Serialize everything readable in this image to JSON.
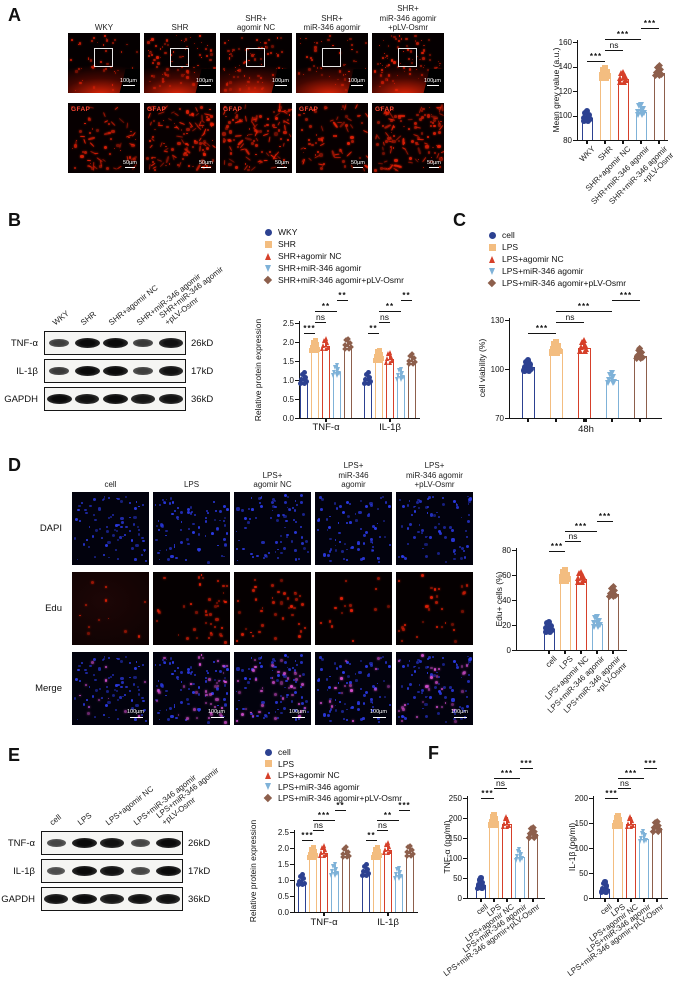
{
  "colors": {
    "series": [
      "#2c4191",
      "#f3bd80",
      "#d6402a",
      "#7fb2d8",
      "#8d5f4c"
    ],
    "fluor_red": "#e32007",
    "fluor_blue": "#2b3ae6",
    "fluor_magenta": "#d84fd0"
  },
  "markers": [
    "circle",
    "square",
    "triangle-up",
    "triangle-down",
    "diamond"
  ],
  "panelA": {
    "label": "A",
    "col_headers": [
      "WKY",
      "SHR",
      "SHR+\nagomir NC",
      "SHR+\nmiR-346 agomir",
      "SHR+\nmiR-346 agomir\n+pLV-Osmr"
    ],
    "gfap": "GFAP",
    "scale_top": "100µm",
    "scale_bottom": "50µm"
  },
  "panelB": {
    "label": "B",
    "blot": {
      "lanes": [
        "WKY",
        "SHR",
        "SHR+agomir NC",
        "SHR+miR-346 agomir",
        "SHR+miR-346 agomir\n+pLV-Osmr"
      ],
      "rows": [
        {
          "protein": "TNF-α",
          "kd": "26kD",
          "intensities": [
            0.55,
            1,
            1,
            0.6,
            0.95
          ]
        },
        {
          "protein": "IL-1β",
          "kd": "17kD",
          "intensities": [
            0.6,
            1,
            1,
            0.55,
            0.95
          ]
        },
        {
          "protein": "GAPDH",
          "kd": "36kD",
          "intensities": [
            1,
            0.95,
            1,
            0.9,
            0.95
          ]
        }
      ]
    }
  },
  "panelC": {
    "label": "C"
  },
  "panelD": {
    "label": "D",
    "col_headers": [
      "cell",
      "LPS",
      "LPS+\nagomir NC",
      "LPS+\nmiR-346\nagomir",
      "LPS+\nmiR-346 agomir\n+pLV-Osmr"
    ],
    "row_headers": [
      "DAPI",
      "Edu",
      "Merge"
    ],
    "scale": "100µm"
  },
  "panelE": {
    "label": "E",
    "blot": {
      "lanes": [
        "cell",
        "LPS",
        "LPS+agomir NC",
        "LPS+miR-346 agomir",
        "LPS+miR-346 agomir\n+pLV-Osmr"
      ],
      "rows": [
        {
          "protein": "TNF-α",
          "kd": "26kD",
          "intensities": [
            0.5,
            1,
            0.95,
            0.5,
            1
          ]
        },
        {
          "protein": "IL-1β",
          "kd": "17kD",
          "intensities": [
            0.45,
            1,
            0.95,
            0.5,
            1
          ]
        },
        {
          "protein": "GAPDH",
          "kd": "36kD",
          "intensities": [
            0.95,
            1,
            0.9,
            0.95,
            0.95
          ]
        }
      ]
    }
  },
  "panelF": {
    "label": "F"
  },
  "chart_data": [
    {
      "id": "A",
      "type": "bar",
      "ylabel": "Mean grey value (a.u.)",
      "ylim": [
        80,
        160
      ],
      "yticks": [
        "80",
        "100",
        "120",
        "140",
        "160"
      ],
      "categories": [
        "WKY",
        "SHR",
        "SHR+agomir NC",
        "SHR+miR-346 agomir",
        "SHR+miR-346 agomir\n+pLV-Osmr"
      ],
      "values": [
        98,
        133,
        130,
        103,
        135
      ],
      "sig": [
        {
          "a": 3,
          "b": 4,
          "label": "***",
          "row": 0
        },
        {
          "a": 1,
          "b": 3,
          "label": "***",
          "row": 1
        },
        {
          "a": 1,
          "b": 2,
          "label": "ns",
          "row": 2
        },
        {
          "a": 0,
          "b": 1,
          "label": "***",
          "row": 3
        }
      ]
    },
    {
      "id": "B",
      "type": "bar",
      "grouped": true,
      "ylabel": "Relative protein expression",
      "ylim": [
        0,
        2.5
      ],
      "yticks": [
        "0.0",
        "0.5",
        "1.0",
        "1.5",
        "2.0",
        "2.5"
      ],
      "categories": [
        "TNF-α",
        "IL-1β"
      ],
      "series": [
        {
          "name": "WKY",
          "values": [
            1.0,
            1.0
          ]
        },
        {
          "name": "SHR",
          "values": [
            1.85,
            1.6
          ]
        },
        {
          "name": "SHR+agomir NC",
          "values": [
            1.9,
            1.55
          ]
        },
        {
          "name": "SHR+miR-346 agomir",
          "values": [
            1.2,
            1.1
          ]
        },
        {
          "name": "SHR+miR-346 agomir+pLV-Osmr",
          "values": [
            1.9,
            1.5
          ]
        }
      ],
      "sig": [
        {
          "g": 0,
          "a": 3,
          "b": 4,
          "label": "**",
          "row": 0
        },
        {
          "g": 0,
          "a": 1,
          "b": 3,
          "label": "**",
          "row": 1
        },
        {
          "g": 0,
          "a": 1,
          "b": 2,
          "label": "ns",
          "row": 2
        },
        {
          "g": 0,
          "a": 0,
          "b": 1,
          "label": "***",
          "row": 3
        },
        {
          "g": 1,
          "a": 3,
          "b": 4,
          "label": "**",
          "row": 0
        },
        {
          "g": 1,
          "a": 1,
          "b": 3,
          "label": "**",
          "row": 1
        },
        {
          "g": 1,
          "a": 1,
          "b": 2,
          "label": "ns",
          "row": 2
        },
        {
          "g": 1,
          "a": 0,
          "b": 1,
          "label": "**",
          "row": 3
        }
      ]
    },
    {
      "id": "C",
      "type": "bar",
      "ylabel": "cell viability (%)",
      "xlabel": "48h",
      "ylim": [
        70,
        130
      ],
      "yticks": [
        "70",
        "100",
        "130"
      ],
      "categories": [
        "cell",
        "LPS",
        "LPS+agomir NC",
        "LPS+miR-346 agomir",
        "LPS+miR-346 agomir+pLV-Osmr"
      ],
      "values": [
        101,
        112,
        113,
        93,
        108
      ],
      "legend": true,
      "sig": [
        {
          "a": 3,
          "b": 4,
          "label": "***",
          "row": 0
        },
        {
          "a": 1,
          "b": 3,
          "label": "***",
          "row": 1
        },
        {
          "a": 1,
          "b": 2,
          "label": "ns",
          "row": 2
        },
        {
          "a": 0,
          "b": 1,
          "label": "***",
          "row": 3
        }
      ]
    },
    {
      "id": "D",
      "type": "bar",
      "ylabel": "Edu+ cells (%)",
      "ylim": [
        0,
        80
      ],
      "yticks": [
        "0",
        "20",
        "40",
        "60",
        "80"
      ],
      "categories": [
        "cell",
        "LPS",
        "LPS+agomir NC",
        "LPS+miR-346 agomir",
        "LPS+miR-346 agomir\n+pLV-Osmr"
      ],
      "values": [
        17,
        58,
        57,
        21,
        45
      ],
      "sig": [
        {
          "a": 3,
          "b": 4,
          "label": "***",
          "row": 0
        },
        {
          "a": 1,
          "b": 3,
          "label": "***",
          "row": 1
        },
        {
          "a": 1,
          "b": 2,
          "label": "ns",
          "row": 2
        },
        {
          "a": 0,
          "b": 1,
          "label": "***",
          "row": 3
        }
      ]
    },
    {
      "id": "E",
      "type": "bar",
      "grouped": true,
      "ylabel": "Relative protein expression",
      "ylim": [
        0,
        2.5
      ],
      "yticks": [
        "0.0",
        "0.5",
        "1.0",
        "1.5",
        "2.0",
        "2.5"
      ],
      "categories": [
        "TNF-α",
        "IL-1β"
      ],
      "series": [
        {
          "name": "cell",
          "values": [
            0.95,
            1.25
          ]
        },
        {
          "name": "LPS",
          "values": [
            1.8,
            1.8
          ]
        },
        {
          "name": "LPS+agomir NC",
          "values": [
            1.85,
            1.95
          ]
        },
        {
          "name": "LPS+miR-346 agomir",
          "values": [
            1.25,
            1.15
          ]
        },
        {
          "name": "LPS+miR-346 agomir+pLV-Osmr",
          "values": [
            1.8,
            1.85
          ]
        }
      ],
      "sig": [
        {
          "g": 0,
          "a": 3,
          "b": 4,
          "label": "**",
          "row": 0
        },
        {
          "g": 0,
          "a": 1,
          "b": 3,
          "label": "***",
          "row": 1
        },
        {
          "g": 0,
          "a": 1,
          "b": 2,
          "label": "ns",
          "row": 2
        },
        {
          "g": 0,
          "a": 0,
          "b": 1,
          "label": "***",
          "row": 3
        },
        {
          "g": 1,
          "a": 3,
          "b": 4,
          "label": "***",
          "row": 0
        },
        {
          "g": 1,
          "a": 1,
          "b": 3,
          "label": "**",
          "row": 1
        },
        {
          "g": 1,
          "a": 1,
          "b": 2,
          "label": "ns",
          "row": 2
        },
        {
          "g": 1,
          "a": 0,
          "b": 1,
          "label": "**",
          "row": 3
        }
      ]
    },
    {
      "id": "F1",
      "type": "bar",
      "ylabel": "TNF-α (pg/ml)",
      "ylim": [
        0,
        250
      ],
      "yticks": [
        "0",
        "50",
        "100",
        "150",
        "200",
        "250"
      ],
      "categories": [
        "cell",
        "LPS",
        "LPS+agomir NC",
        "LPS+miR-346 agomir",
        "LPS+miR-346 agomir+pLV-Osmr"
      ],
      "values": [
        32,
        190,
        185,
        102,
        160
      ],
      "sig": [
        {
          "a": 3,
          "b": 4,
          "label": "***",
          "row": 0
        },
        {
          "a": 1,
          "b": 3,
          "label": "***",
          "row": 1
        },
        {
          "a": 1,
          "b": 2,
          "label": "ns",
          "row": 2
        },
        {
          "a": 0,
          "b": 1,
          "label": "***",
          "row": 3
        }
      ]
    },
    {
      "id": "F2",
      "type": "bar",
      "ylabel": "IL-1β (pg/ml)",
      "ylim": [
        0,
        200
      ],
      "yticks": [
        "0",
        "50",
        "100",
        "150",
        "200"
      ],
      "categories": [
        "cell",
        "LPS",
        "LPS+agomir NC",
        "LPS+miR-346 agomir",
        "LPS+miR-346 agomir+pLV-Osmr"
      ],
      "values": [
        18,
        150,
        148,
        118,
        140
      ],
      "sig": [
        {
          "a": 3,
          "b": 4,
          "label": "***",
          "row": 0
        },
        {
          "a": 1,
          "b": 3,
          "label": "***",
          "row": 1
        },
        {
          "a": 1,
          "b": 2,
          "label": "ns",
          "row": 2
        },
        {
          "a": 0,
          "b": 1,
          "label": "***",
          "row": 3
        }
      ]
    }
  ]
}
